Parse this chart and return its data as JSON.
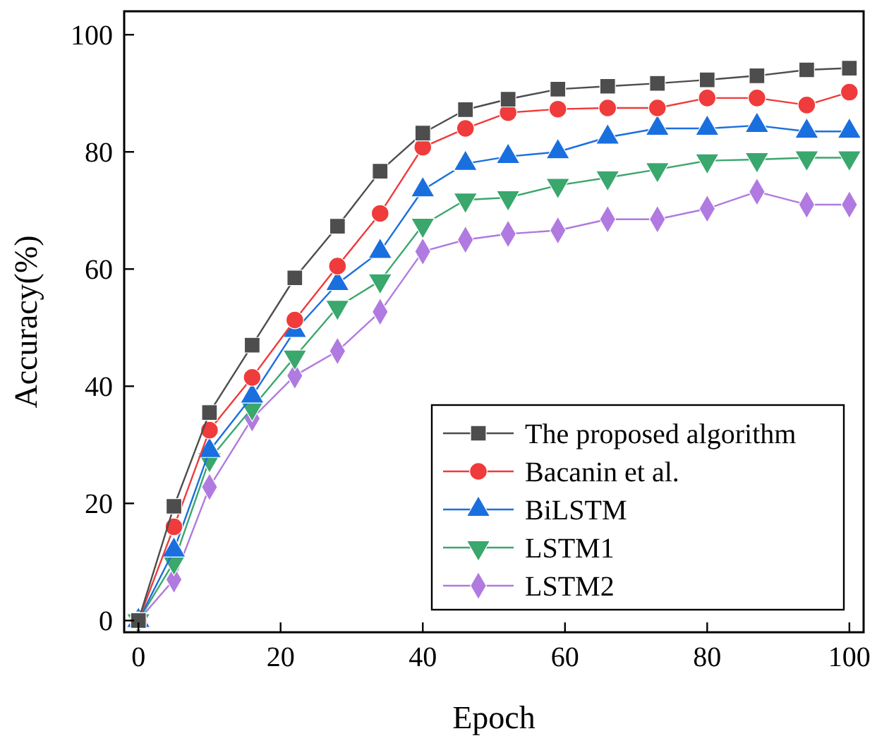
{
  "chart_data": {
    "type": "line",
    "xlabel": "Epoch",
    "ylabel": "Accuracy(%)",
    "x": [
      0,
      5,
      10,
      16,
      22,
      28,
      34,
      40,
      46,
      52,
      59,
      66,
      73,
      80,
      87,
      94,
      100
    ],
    "xlim": [
      -2,
      102
    ],
    "xticks": [
      0,
      20,
      40,
      60,
      80,
      100
    ],
    "ylim": [
      -2,
      104
    ],
    "yticks": [
      0,
      20,
      40,
      60,
      80,
      100
    ],
    "grid": false,
    "legend": "bottom right",
    "line_style": "solid",
    "series": [
      {
        "name": "The proposed algorithm",
        "color": "#4d4d4d",
        "marker": "square",
        "values": [
          0,
          19.5,
          35.5,
          47,
          58.5,
          67.3,
          76.7,
          83.2,
          87.2,
          89,
          90.7,
          91.2,
          91.7,
          92.3,
          93,
          94,
          94.3
        ]
      },
      {
        "name": "Bacanin et al.",
        "color": "#ef3b3b",
        "marker": "circle",
        "values": [
          0,
          16,
          32.5,
          41.5,
          51.3,
          60.5,
          69.5,
          80.8,
          84,
          86.7,
          87.3,
          87.5,
          87.5,
          89.2,
          89.2,
          88,
          90.2
        ]
      },
      {
        "name": "BiLSTM",
        "color": "#1a6fdf",
        "marker": "triangle",
        "values": [
          0,
          12,
          29,
          38.3,
          49.5,
          57.5,
          63,
          73.5,
          78,
          79.2,
          80,
          82.5,
          84,
          84,
          84.5,
          83.5,
          83.5
        ]
      },
      {
        "name": "LSTM1",
        "color": "#3aa76d",
        "marker": "triangle-down",
        "values": [
          0,
          10,
          27.5,
          36.3,
          45,
          53.5,
          58,
          67.5,
          71.8,
          72.2,
          74.3,
          75.6,
          77,
          78.5,
          78.7,
          79,
          79
        ]
      },
      {
        "name": "LSTM2",
        "color": "#b07ae0",
        "marker": "diamond",
        "values": [
          0,
          7,
          22.8,
          34.5,
          41.8,
          46,
          52.7,
          63,
          65,
          66,
          66.6,
          68.5,
          68.5,
          70.3,
          73.2,
          71,
          71
        ]
      }
    ]
  }
}
